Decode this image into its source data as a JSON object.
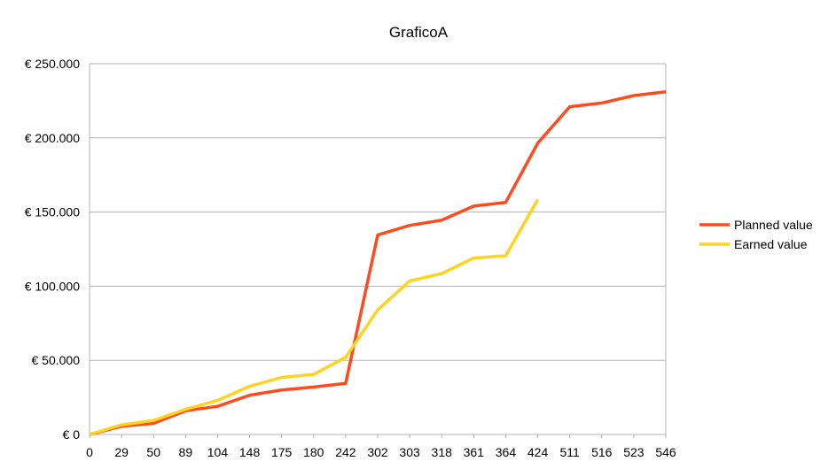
{
  "chart_data": {
    "type": "line",
    "title": "GraficoA",
    "xlabel": "",
    "ylabel": "",
    "categories": [
      "0",
      "29",
      "50",
      "89",
      "104",
      "148",
      "175",
      "180",
      "242",
      "302",
      "303",
      "318",
      "361",
      "364",
      "424",
      "511",
      "516",
      "523",
      "546"
    ],
    "ylim": [
      0,
      250000
    ],
    "y_ticks": [
      {
        "value": 0,
        "label": "€ 0"
      },
      {
        "value": 50000,
        "label": "€ 50.000"
      },
      {
        "value": 100000,
        "label": "€ 100.000"
      },
      {
        "value": 150000,
        "label": "€ 150.000"
      },
      {
        "value": 200000,
        "label": "€ 200.000"
      },
      {
        "value": 250000,
        "label": "€ 250.000"
      }
    ],
    "grid": true,
    "legend_position": "right",
    "series": [
      {
        "name": "Planned value",
        "color": "#ff4b1f",
        "values": [
          0,
          5500,
          7500,
          16000,
          19000,
          26500,
          30000,
          32000,
          34500,
          134500,
          141000,
          144500,
          154000,
          156500,
          196500,
          221000,
          223500,
          228500,
          231000
        ]
      },
      {
        "name": "Earned value",
        "color": "#ffd320",
        "values": [
          0,
          6500,
          9500,
          17000,
          23000,
          32500,
          38500,
          40500,
          52000,
          84000,
          103500,
          108500,
          119000,
          120500,
          158500,
          null,
          null,
          null,
          null
        ]
      }
    ]
  }
}
